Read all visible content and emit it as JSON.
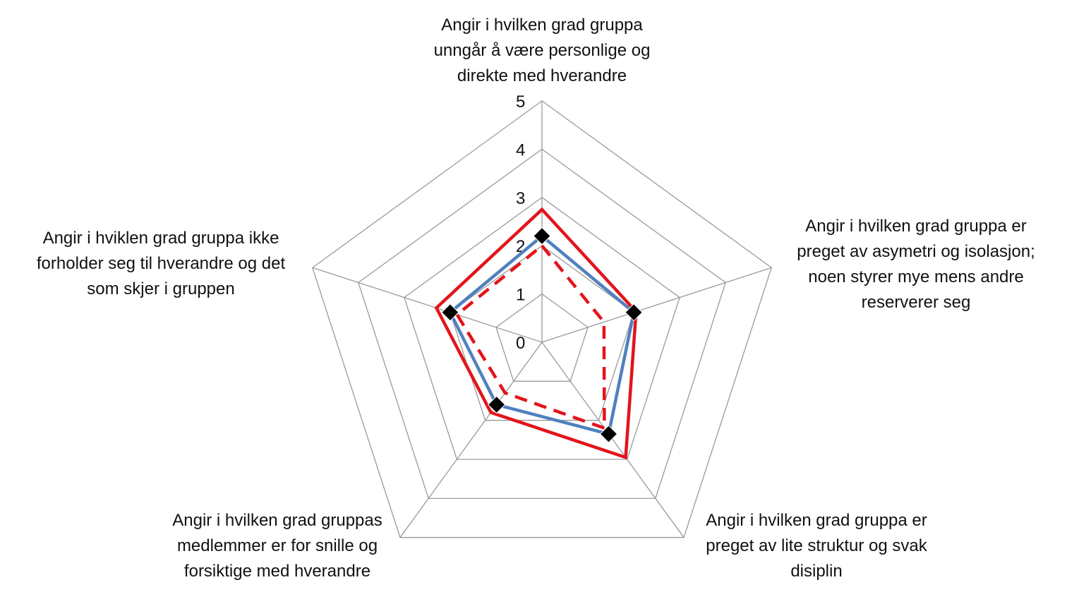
{
  "chart_data": {
    "type": "radar",
    "categories": [
      "Angir i hvilken grad gruppa\nunngår å være personlige og\ndirekte med hverandre",
      "Angir i hvilken grad gruppa er\npreget av asymetri og isolasjon;\nnoen styrer mye mens andre\nreserverer seg",
      "Angir i hvilken grad gruppa er\npreget av lite struktur og svak\ndisiplin",
      "Angir i hvilken grad gruppas\nmedlemmer er for snille og\nforsiktige med hverandre",
      "Angir i hviklen grad gruppa ikke\nforholder seg til hverandre og det\nsom skjer i gruppen"
    ],
    "ticks": [
      "0",
      "1",
      "2",
      "3",
      "4",
      "5"
    ],
    "rlim": [
      0,
      5
    ],
    "series": [
      {
        "color": "#e3141b",
        "style": "solid",
        "marker": "none",
        "values": [
          2.75,
          2.05,
          2.95,
          1.8,
          2.3
        ]
      },
      {
        "color": "#4f81bd",
        "style": "solid",
        "marker": "diamond",
        "values": [
          2.2,
          2.0,
          2.35,
          1.6,
          2.0
        ]
      },
      {
        "color": "#e3141b",
        "style": "dashed",
        "marker": "none",
        "values": [
          2.0,
          1.35,
          2.2,
          1.3,
          1.85
        ]
      }
    ],
    "grid": true,
    "legend": "none"
  }
}
